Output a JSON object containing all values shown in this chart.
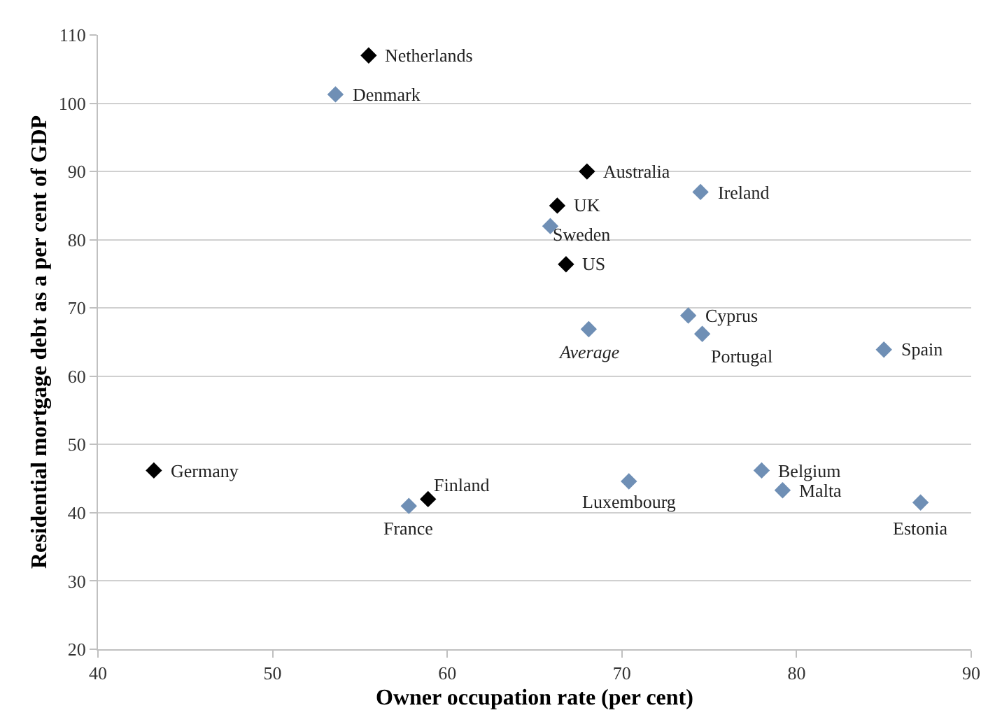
{
  "chart_data": {
    "type": "scatter",
    "xlabel": "Owner occupation rate (per cent)",
    "ylabel": "Residential mortgage debt as a per cent of GDP",
    "xlim": [
      40,
      90
    ],
    "xticks": [
      40,
      50,
      60,
      70,
      80,
      90
    ],
    "ylim": [
      20,
      110
    ],
    "yticks": [
      20,
      30,
      40,
      50,
      60,
      70,
      80,
      90,
      100,
      110
    ],
    "grid": "y",
    "marker": "diamond",
    "series": [
      {
        "color": "#000000",
        "x": [
          55.5,
          68.0,
          66.3,
          66.8,
          43.2,
          58.9
        ],
        "values": [
          107,
          90,
          85,
          76.4,
          46.2,
          42
        ]
      },
      {
        "color": "#6f8fb5",
        "x": [
          53.6,
          74.5,
          65.9,
          73.8,
          68.1,
          74.6,
          85.0,
          57.8,
          70.4,
          78.0,
          79.2,
          87.1
        ],
        "values": [
          101.3,
          87,
          82,
          68.9,
          66.9,
          66.2,
          63.9,
          41,
          44.6,
          46.2,
          43.3,
          41.5
        ]
      }
    ],
    "annotations": [
      {
        "text": "Netherlands",
        "x": 55.5,
        "y": 107
      },
      {
        "text": "Denmark",
        "x": 53.6,
        "y": 101.3
      },
      {
        "text": "Australia",
        "x": 68.0,
        "y": 90
      },
      {
        "text": "Ireland",
        "x": 74.5,
        "y": 87
      },
      {
        "text": "UK",
        "x": 66.3,
        "y": 85
      },
      {
        "text": "Sweden",
        "x": 65.9,
        "y": 82
      },
      {
        "text": "US",
        "x": 66.8,
        "y": 76.4
      },
      {
        "text": "Cyprus",
        "x": 73.8,
        "y": 68.9
      },
      {
        "text": "Average",
        "x": 68.1,
        "y": 66.9
      },
      {
        "text": "Portugal",
        "x": 74.6,
        "y": 66.2
      },
      {
        "text": "Spain",
        "x": 85.0,
        "y": 63.9
      },
      {
        "text": "Germany",
        "x": 43.2,
        "y": 46.2
      },
      {
        "text": "Finland",
        "x": 58.9,
        "y": 42
      },
      {
        "text": "France",
        "x": 57.8,
        "y": 41
      },
      {
        "text": "Luxembourg",
        "x": 70.4,
        "y": 44.6
      },
      {
        "text": "Belgium",
        "x": 78.0,
        "y": 46.2
      },
      {
        "text": "Malta",
        "x": 79.2,
        "y": 43.3
      },
      {
        "text": "Estonia",
        "x": 87.1,
        "y": 41.5
      }
    ]
  }
}
